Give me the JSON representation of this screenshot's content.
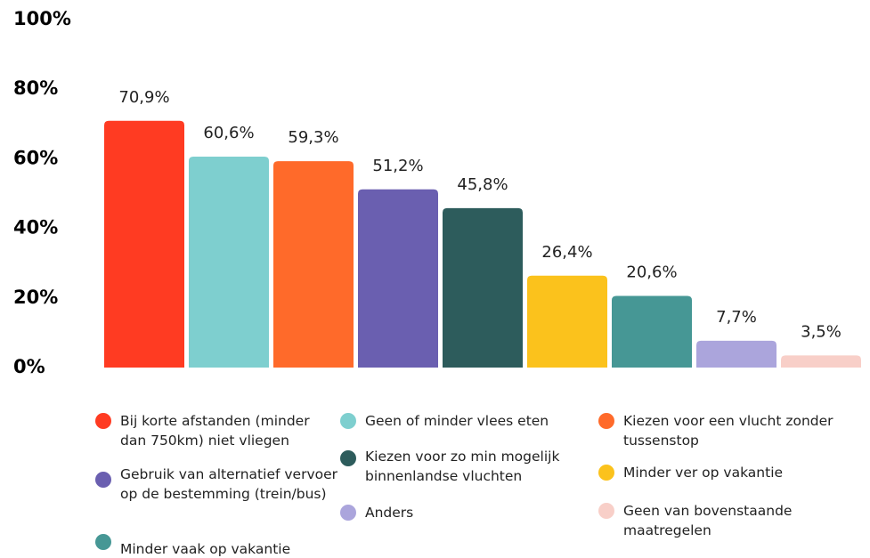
{
  "chart_data": {
    "type": "bar",
    "categories": [
      "Bij korte afstanden (minder dan 750km) niet vliegen",
      "Geen of minder vlees eten",
      "Kiezen voor een vlucht zonder tussenstop",
      "Gebruik van alternatief vervoer op de bestemming (trein/bus)",
      "Kiezen voor zo min mogelijk binnenlandse vluchten",
      "Minder ver op vakantie",
      "Minder vaak op vakantie",
      "Anders",
      "Geen van bovenstaande maatregelen"
    ],
    "values": [
      70.9,
      60.6,
      59.3,
      51.2,
      45.8,
      26.4,
      20.6,
      7.7,
      3.5
    ],
    "value_labels": [
      "70,9%",
      "60,6%",
      "59,3%",
      "51,2%",
      "45,8%",
      "26,4%",
      "20,6%",
      "7,7%",
      "3,5%"
    ],
    "colors": [
      "#ff3b22",
      "#7ecfcf",
      "#ff6a2a",
      "#6a5fb0",
      "#2d5c5c",
      "#fbc21c",
      "#469795",
      "#aba5dc",
      "#f8cfc8"
    ],
    "ylim": [
      0,
      100
    ],
    "yticks": [
      {
        "value": 0,
        "label": "0%"
      },
      {
        "value": 20,
        "label": "20%"
      },
      {
        "value": 40,
        "label": "40%"
      },
      {
        "value": 60,
        "label": "60%"
      },
      {
        "value": 80,
        "label": "80%"
      },
      {
        "value": 100,
        "label": "100%"
      }
    ]
  }
}
